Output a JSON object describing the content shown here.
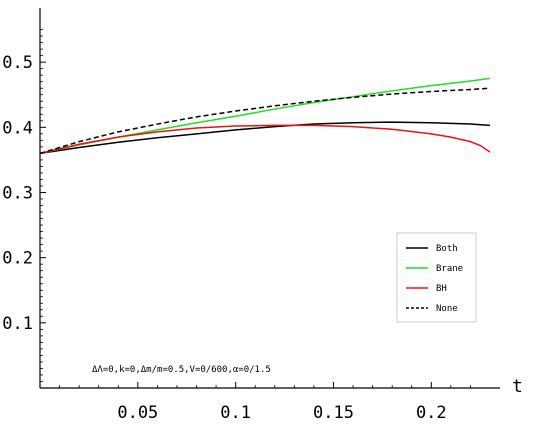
{
  "chart_data": {
    "type": "line",
    "title": "",
    "xlabel": "t",
    "ylabel": "",
    "xlim": [
      0,
      0.23
    ],
    "ylim": [
      0,
      0.58
    ],
    "x_ticks": [
      0.05,
      0.1,
      0.15,
      0.2
    ],
    "x_tick_labels": [
      "0.05",
      "0.1",
      "0.15",
      "0.2"
    ],
    "y_ticks": [
      0.1,
      0.2,
      0.3,
      0.4,
      0.5
    ],
    "y_tick_labels": [
      "0.1",
      "0.2",
      "0.3",
      "0.4",
      "0.5"
    ],
    "grid": false,
    "legend_position": "right",
    "annotation": "ΔΛ=0,k=0,Δm/m=0.5,V=0/600,α=0/1.5",
    "series": [
      {
        "name": "Both",
        "color": "#000000",
        "dash": "solid",
        "x": [
          0,
          0.02,
          0.04,
          0.06,
          0.08,
          0.1,
          0.12,
          0.14,
          0.16,
          0.18,
          0.2,
          0.22,
          0.23
        ],
        "y": [
          0.36,
          0.369,
          0.377,
          0.384,
          0.39,
          0.396,
          0.401,
          0.405,
          0.407,
          0.408,
          0.407,
          0.405,
          0.403
        ]
      },
      {
        "name": "Brane",
        "color": "#22dd22",
        "dash": "solid",
        "x": [
          0,
          0.02,
          0.04,
          0.06,
          0.08,
          0.1,
          0.12,
          0.14,
          0.16,
          0.18,
          0.2,
          0.22,
          0.23
        ],
        "y": [
          0.36,
          0.373,
          0.385,
          0.396,
          0.407,
          0.417,
          0.428,
          0.438,
          0.447,
          0.456,
          0.464,
          0.471,
          0.475
        ]
      },
      {
        "name": "BH",
        "color": "#ee1111",
        "dash": "solid",
        "x": [
          0,
          0.02,
          0.04,
          0.06,
          0.08,
          0.1,
          0.12,
          0.14,
          0.16,
          0.18,
          0.2,
          0.21,
          0.22,
          0.225,
          0.23
        ],
        "y": [
          0.36,
          0.374,
          0.385,
          0.393,
          0.399,
          0.402,
          0.403,
          0.403,
          0.401,
          0.397,
          0.39,
          0.385,
          0.378,
          0.372,
          0.362
        ]
      },
      {
        "name": "None",
        "color": "#000000",
        "dash": "dashed",
        "x": [
          0,
          0.02,
          0.04,
          0.06,
          0.08,
          0.1,
          0.12,
          0.14,
          0.16,
          0.18,
          0.2,
          0.22,
          0.23
        ],
        "y": [
          0.36,
          0.378,
          0.393,
          0.405,
          0.416,
          0.425,
          0.433,
          0.44,
          0.446,
          0.451,
          0.455,
          0.458,
          0.46
        ]
      }
    ]
  }
}
